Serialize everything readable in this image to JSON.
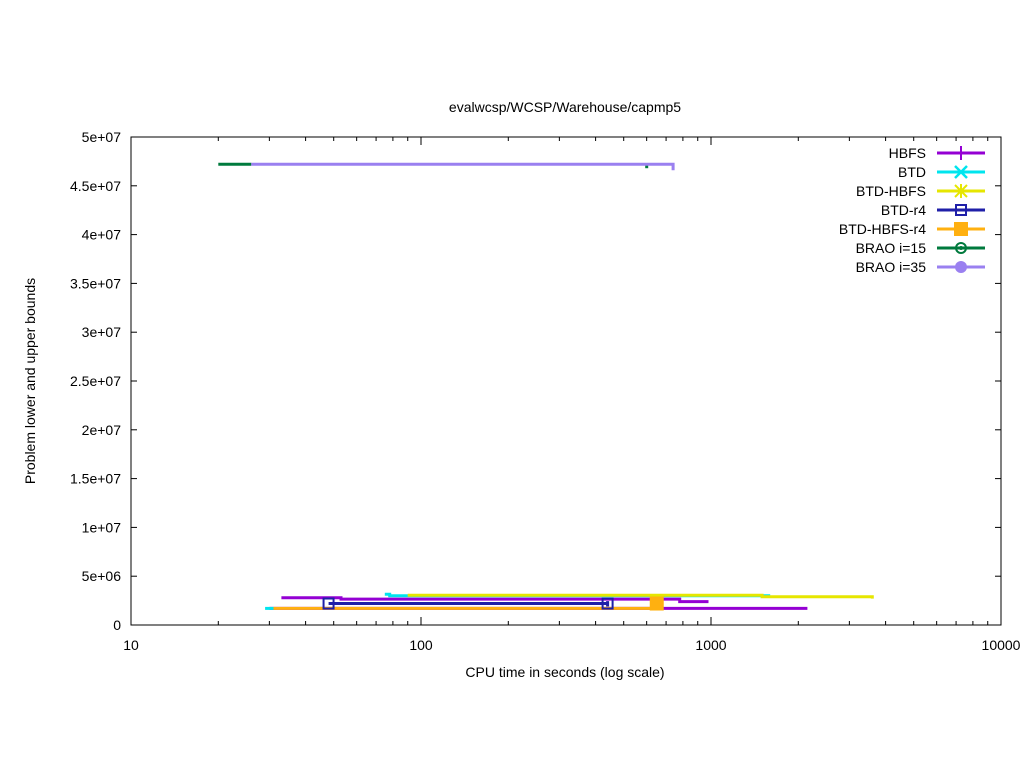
{
  "chart_data": {
    "type": "line",
    "title": "evalwcsp/WCSP/Warehouse/capmp5",
    "xlabel": "CPU time in seconds (log scale)",
    "ylabel": "Problem lower and upper bounds",
    "xscale": "log",
    "xlim": [
      10,
      10000
    ],
    "ylim": [
      0,
      50000000
    ],
    "xticks": [
      10,
      100,
      1000,
      10000
    ],
    "xtick_labels": [
      "10",
      "100",
      "1000",
      "10000"
    ],
    "yticks": [
      0,
      5000000,
      10000000,
      15000000,
      20000000,
      25000000,
      30000000,
      35000000,
      40000000,
      45000000,
      50000000
    ],
    "ytick_labels": [
      "0",
      "5e+06",
      "1e+07",
      "1.5e+07",
      "2e+07",
      "2.5e+07",
      "3e+07",
      "3.5e+07",
      "4e+07",
      "4.5e+07",
      "5e+07"
    ],
    "grid": false,
    "legend_position": "top-right",
    "series": [
      {
        "name": "HBFS",
        "color": "#9400d3",
        "marker": "plus",
        "segments": [
          {
            "points": [
              [
                33,
                2800000
              ],
              [
                53,
                2800000
              ],
              [
                53,
                2650000
              ],
              [
                780,
                2650000
              ],
              [
                780,
                2400000
              ],
              [
                980,
                2400000
              ]
            ]
          },
          {
            "points": [
              [
                30,
                1700000
              ],
              [
                2150,
                1700000
              ]
            ]
          }
        ]
      },
      {
        "name": "BTD",
        "color": "#00e5ee",
        "marker": "x",
        "segments": [
          {
            "points": [
              [
                75,
                3150000
              ],
              [
                78,
                3150000
              ],
              [
                78,
                3000000
              ],
              [
                1600,
                3000000
              ]
            ]
          },
          {
            "points": [
              [
                29,
                1700000
              ],
              [
                31,
                1700000
              ]
            ]
          }
        ]
      },
      {
        "name": "BTD-HBFS",
        "color": "#e6e600",
        "marker": "star",
        "segments": [
          {
            "points": [
              [
                90,
                3050000
              ],
              [
                1500,
                3050000
              ],
              [
                1500,
                2900000
              ],
              [
                3600,
                2900000
              ],
              [
                3600,
                2700000
              ]
            ]
          }
        ]
      },
      {
        "name": "BTD-r4",
        "color": "#1f1fa8",
        "marker": "square-open",
        "segments": [
          {
            "points": [
              [
                48,
                2200000
              ],
              [
                440,
                2200000
              ],
              [
                440,
                2450000
              ],
              [
                440,
                1900000
              ]
            ]
          }
        ]
      },
      {
        "name": "BTD-HBFS-r4",
        "color": "#ffb010",
        "marker": "square-filled",
        "segments": [
          {
            "points": [
              [
                31,
                1700000
              ],
              [
                650,
                1700000
              ],
              [
                650,
                2200000
              ]
            ]
          }
        ]
      },
      {
        "name": "BRAO i=15",
        "color": "#007a3d",
        "marker": "circle-open",
        "segments": [
          {
            "points": [
              [
                20,
                47200000
              ],
              [
                26,
                47200000
              ]
            ]
          },
          {
            "points": [
              [
                600,
                46800000
              ],
              [
                600,
                47200000
              ]
            ]
          }
        ]
      },
      {
        "name": "BRAO i=35",
        "color": "#9a80f0",
        "marker": "circle-filled",
        "segments": [
          {
            "points": [
              [
                26,
                47200000
              ],
              [
                740,
                47200000
              ],
              [
                740,
                46600000
              ]
            ]
          }
        ]
      }
    ],
    "point_markers": [
      {
        "series": "BTD-r4",
        "x": 48,
        "y": 2200000
      },
      {
        "series": "BTD-r4",
        "x": 440,
        "y": 2200000
      },
      {
        "series": "BTD-HBFS-r4",
        "x": 650,
        "y": 2200000
      }
    ]
  }
}
